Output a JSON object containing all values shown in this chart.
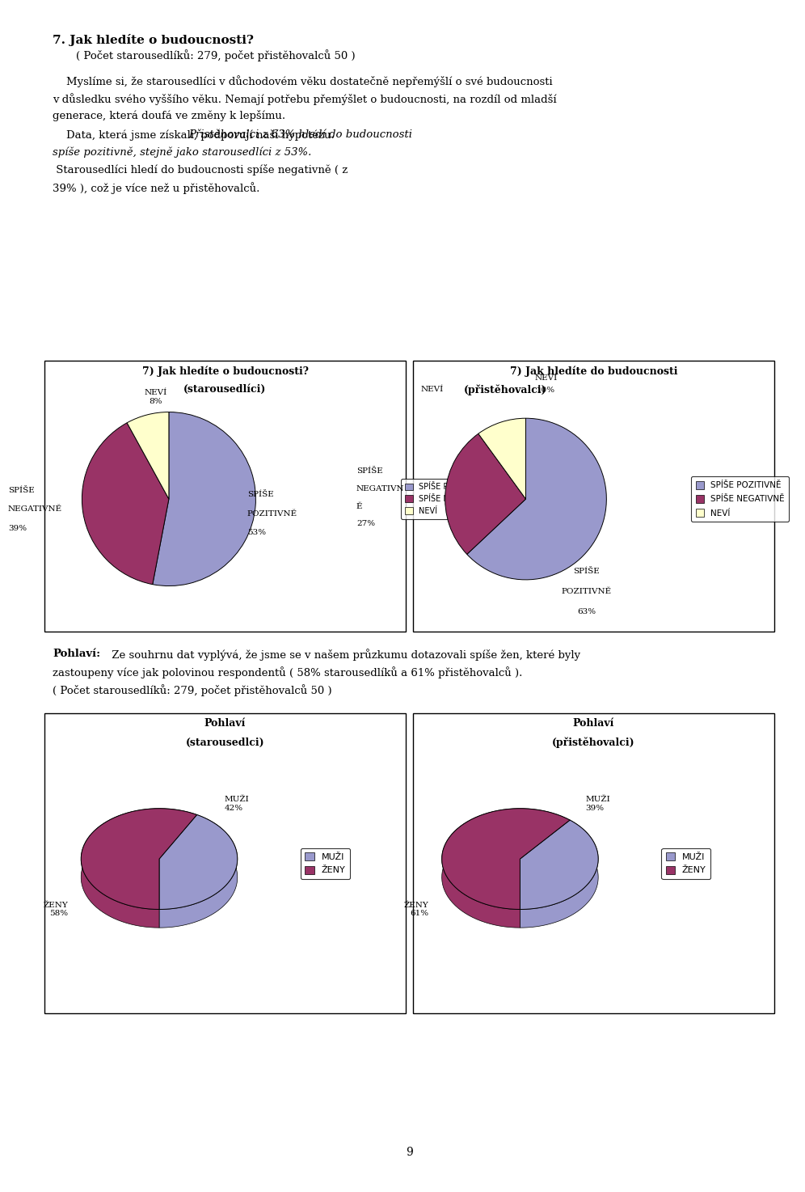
{
  "page_title": "7. Jak hledíte o budoucnosti?",
  "subtitle": "( Počet starousedlíků: 279, počet přistěhovalců 50 )",
  "body1_line1": "    Myslíme si, že starousedlíci v důchodovém věku dostatečně nepřemýšlí o své budoucnosti",
  "body1_line2": "v důsledku svého vyššího věku. Nemají potřebu přemýšlet o budoucnosti, na rozdíl od mladší",
  "body1_line3": "generace, která doufá ve změny k lepšímu.",
  "body2_prefix": "    Data, která jsme získali, podporují naší hypotézu. ",
  "body2_underlined_line1": "Přistěhovalci z 63% hledí do budoucnosti",
  "body2_underlined_line2": "spíše pozitivně, stejně jako starousedlíci z 53%.",
  "body2_cont_line1": " Starousedlíci hledí do budoucnosti spíše negativně ( z",
  "body2_cont_line2": "39% ), což je více než u přistěhovalců.",
  "chart1_title1": "7) Jak hledíte o budoucnosti?",
  "chart1_title2": "(starousedlíci)",
  "chart1_values": [
    53,
    39,
    8
  ],
  "chart1_label_pos": "SPÍŠE\nPOZITIVNĚ\n53%",
  "chart1_label_neg": "SPÍŠE\nNEGATIVNĚ\n39%",
  "chart1_label_nev": "NEVÍ\n8%",
  "chart1_legend": [
    "SPÍŠE POZITIVNĚ",
    "SPÍŠE NEGATIVNĚ",
    "NEVÍ"
  ],
  "chart1_colors": [
    "#9999cc",
    "#993366",
    "#ffffcc"
  ],
  "chart2_title1": "7) Jak hledíte do budoucnosti",
  "chart2_title2_nevi": "NEVÍ",
  "chart2_title2_main": "(přistěhovalci)",
  "chart2_values": [
    63,
    27,
    10
  ],
  "chart2_label_pos": "SPÍŠE\nPOZITIVNĚ\n63%",
  "chart2_label_neg": "SPÍŠE\nNEGATIVNĚ\n27%",
  "chart2_label_nev": "NEVÍ\n10%",
  "chart2_legend": [
    "SPÍŠE POZITIVNĚ",
    "SPÍŠE NEGATIVNĚ",
    "NEVÍ"
  ],
  "chart2_colors": [
    "#9999cc",
    "#993366",
    "#ffffcc"
  ],
  "pohlavie_bold": "Pohlaví:",
  "pohlavie_line1": " Ze souhrnu dat vyplývá, že jsme se v našem průzkumu dotazovali spíše žen, které byly",
  "pohlavie_line2": "zastoupeny více jak polovinou respondentů ( 58% starousedlíků a 61% přistěhovalců ).",
  "pohlavie_line3": "( Počet starousedlíků: 279, počet přistěhovalců 50 )",
  "chart3_title1": "Pohlaví",
  "chart3_title2": "(starousedlci)",
  "chart3_values": [
    42,
    58
  ],
  "chart3_label_muzi": "MUŽI\n42%",
  "chart3_label_zeny": "ŽENY\n58%",
  "chart3_legend": [
    "MUŽI",
    "ŽENY"
  ],
  "chart3_colors": [
    "#9999cc",
    "#993366"
  ],
  "chart4_title1": "Pohlaví",
  "chart4_title2": "(přistěhovalci)",
  "chart4_values": [
    39,
    61
  ],
  "chart4_label_muzi": "MUŽI\n39%",
  "chart4_label_zeny": "ŽENY\n61%",
  "chart4_legend": [
    "MUŽI",
    "ŽENY"
  ],
  "chart4_colors": [
    "#9999cc",
    "#993366"
  ],
  "page_number": "9"
}
